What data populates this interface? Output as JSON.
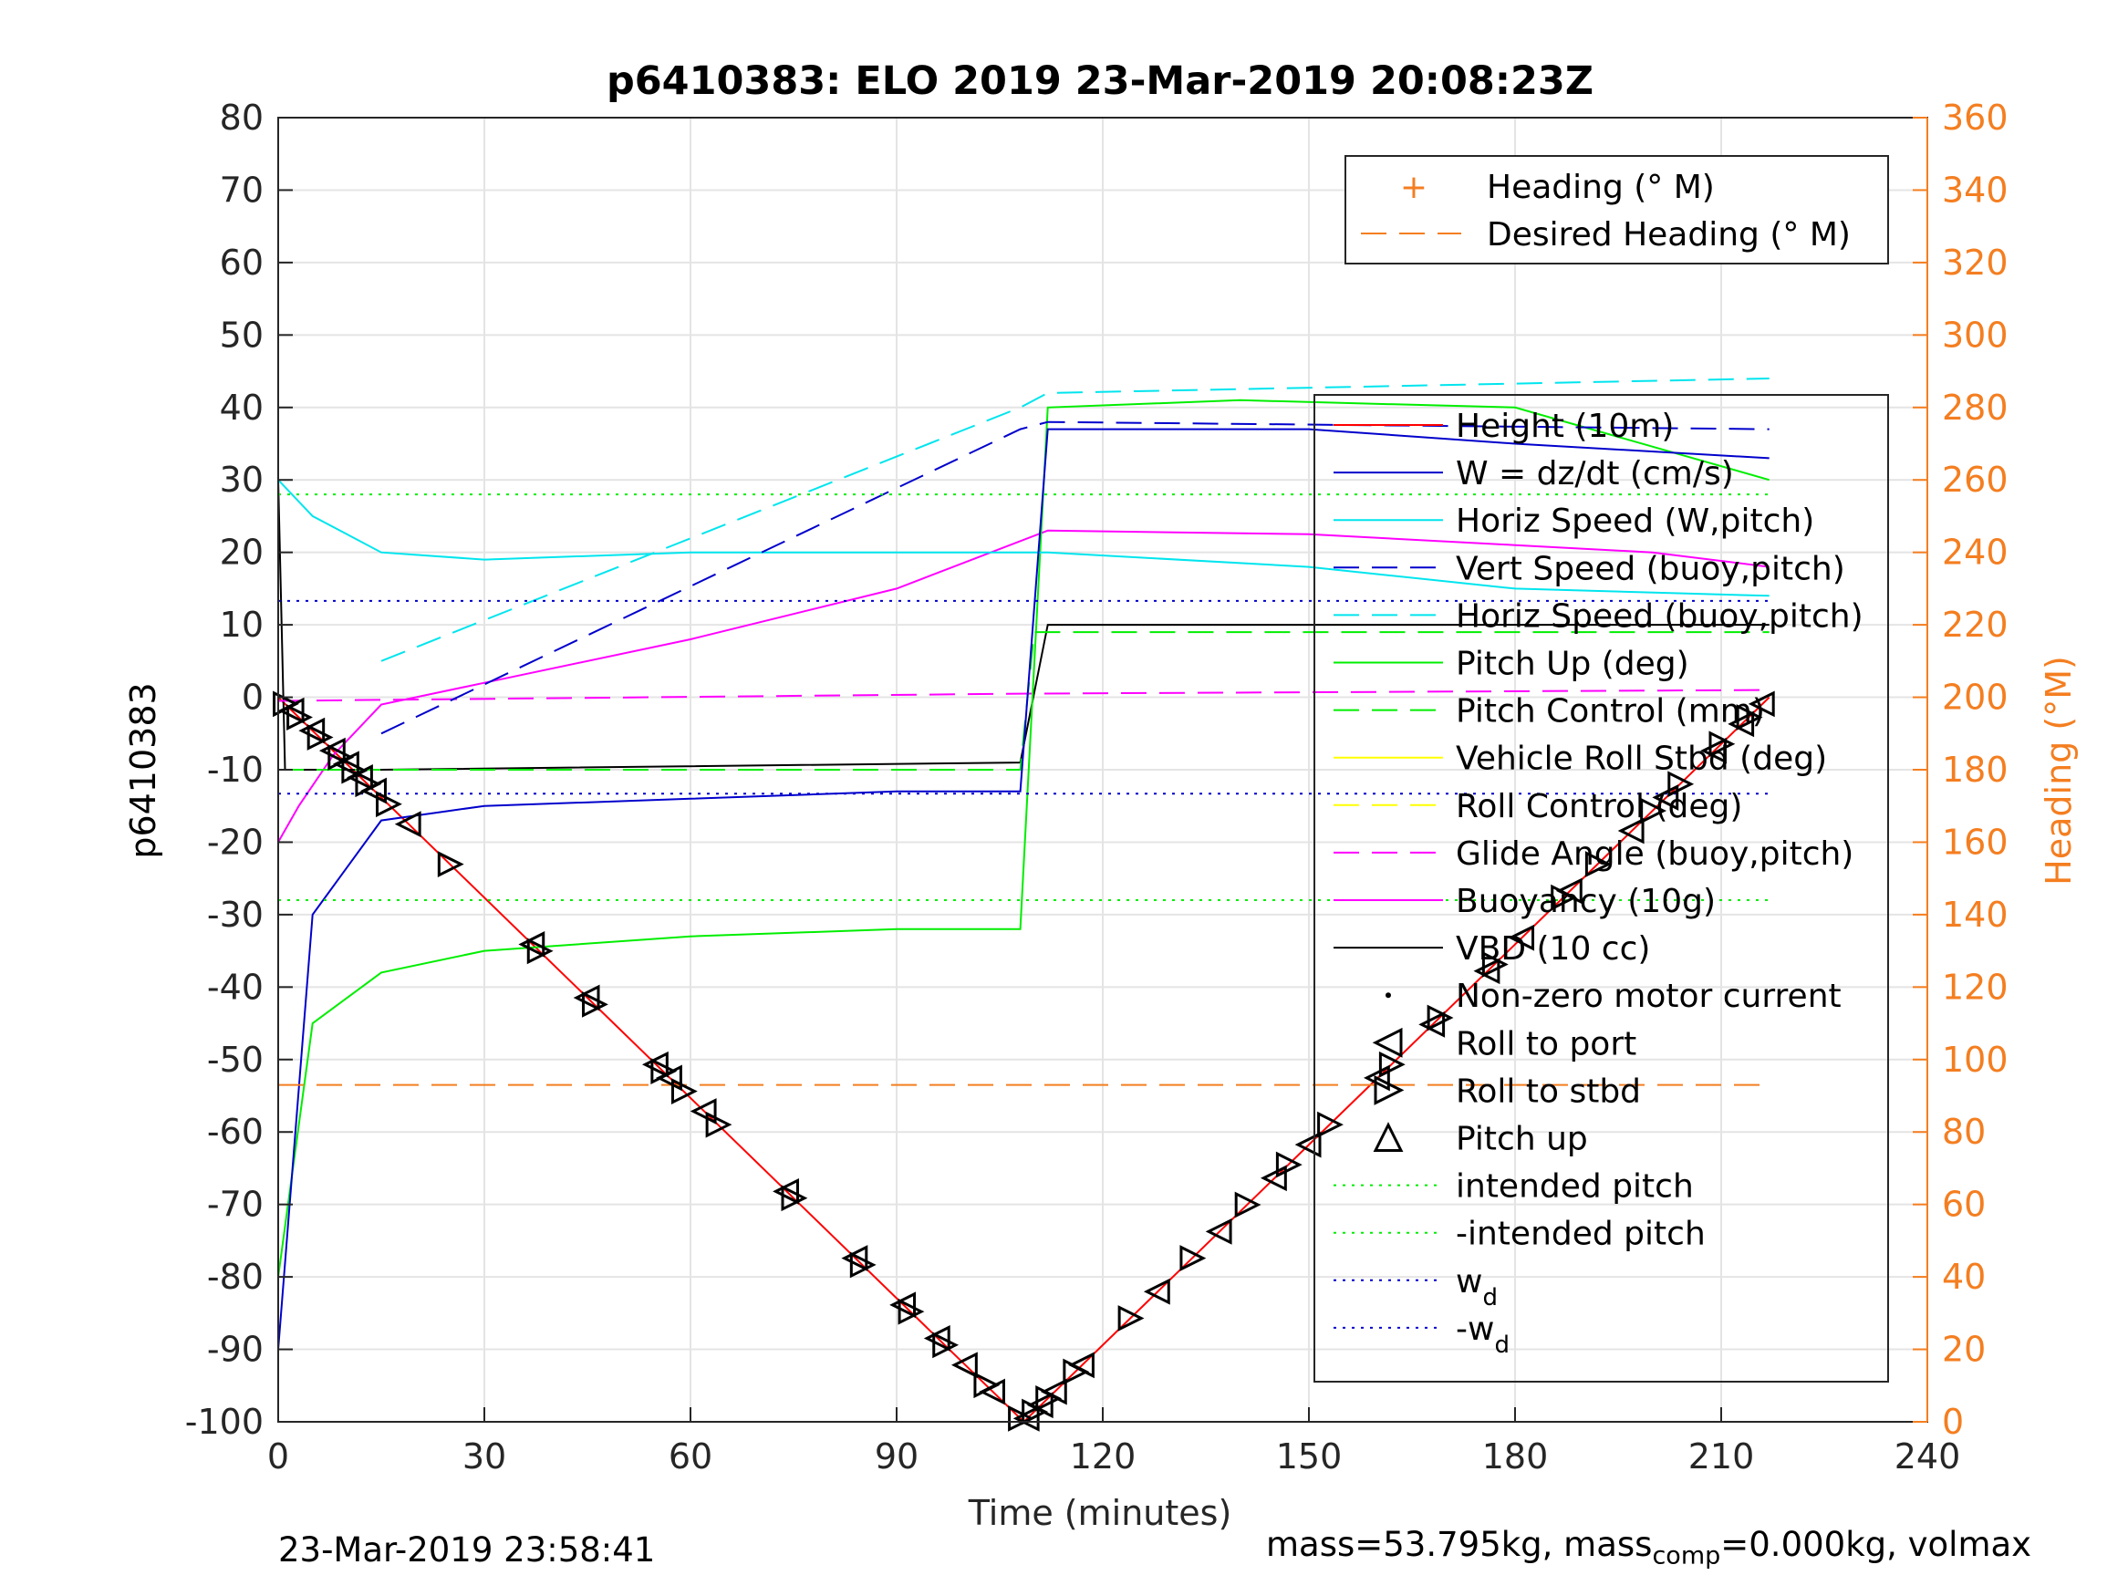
{
  "chart_data": {
    "type": "line",
    "title": "p6410383: ELO 2019 23-Mar-2019 20:08:23Z",
    "xlabel": "Time (minutes)",
    "ylabel_left": "p6410383",
    "ylabel_right": "Heading (°M)",
    "xlim": [
      0,
      240
    ],
    "ylim_left": [
      -100,
      80
    ],
    "ylim_right": [
      0,
      360
    ],
    "xticks": [
      "0",
      "30",
      "60",
      "90",
      "120",
      "150",
      "180",
      "210",
      "240"
    ],
    "yticks_left": [
      "-100",
      "-90",
      "-80",
      "-70",
      "-60",
      "-50",
      "-40",
      "-30",
      "-20",
      "-10",
      "0",
      "10",
      "20",
      "30",
      "40",
      "50",
      "60",
      "70",
      "80"
    ],
    "yticks_right": [
      "0",
      "20",
      "40",
      "60",
      "80",
      "100",
      "120",
      "140",
      "160",
      "180",
      "200",
      "220",
      "240",
      "260",
      "280",
      "300",
      "320",
      "340",
      "360"
    ],
    "grid": true,
    "legend_heading": [
      {
        "label": "Heading (° M)",
        "color": "#f47e20",
        "style": "plus"
      },
      {
        "label": "Desired Heading (° M)",
        "color": "#f47e20",
        "style": "dash"
      }
    ],
    "legend_main": [
      {
        "label": "Height (10m)",
        "color": "#ff0000",
        "style": "solid"
      },
      {
        "label": "W = dz/dt (cm/s)",
        "color": "#0000cc",
        "style": "solid"
      },
      {
        "label": "Horiz Speed (W,pitch)",
        "color": "#00e5ee",
        "style": "solid"
      },
      {
        "label": "Vert Speed (buoy,pitch)",
        "color": "#0000cc",
        "style": "dash"
      },
      {
        "label": "Horiz Speed (buoy,pitch)",
        "color": "#00e5ee",
        "style": "dash"
      },
      {
        "label": "Pitch Up (deg)",
        "color": "#00ee00",
        "style": "solid"
      },
      {
        "label": "Pitch Control (mm)",
        "color": "#00ee00",
        "style": "dash"
      },
      {
        "label": "Vehicle Roll Stbd (deg)",
        "color": "#ffff00",
        "style": "solid"
      },
      {
        "label": "Roll Control (deg)",
        "color": "#ffff00",
        "style": "dash"
      },
      {
        "label": "Glide Angle (buoy,pitch)",
        "color": "#ff00ff",
        "style": "dash"
      },
      {
        "label": "Buoyancy (10g)",
        "color": "#ff00ff",
        "style": "solid"
      },
      {
        "label": "VBD (10 cc)",
        "color": "#000000",
        "style": "solid"
      },
      {
        "label": "Non-zero motor current",
        "color": "#000000",
        "style": "dot"
      },
      {
        "label": "Roll to port",
        "color": "#000000",
        "style": "tri-left"
      },
      {
        "label": "Roll to stbd",
        "color": "#000000",
        "style": "tri-right"
      },
      {
        "label": "Pitch up",
        "color": "#000000",
        "style": "tri-up"
      },
      {
        "label": "intended pitch",
        "color": "#00ee00",
        "style": "dot"
      },
      {
        "label": "-intended pitch",
        "color": "#00ee00",
        "style": "dot"
      },
      {
        "label": "w",
        "sub": "d",
        "color": "#0000cc",
        "style": "dot"
      },
      {
        "label": "-w",
        "sub": "d",
        "color": "#0000cc",
        "style": "dot"
      }
    ],
    "series": [
      {
        "name": "Height (10m)",
        "x": [
          0,
          108.5,
          217
        ],
        "y": [
          0,
          -100,
          0
        ]
      },
      {
        "name": "VBD (10 cc)",
        "x": [
          0,
          1,
          15,
          108,
          112,
          217
        ],
        "y": [
          30,
          -10,
          -10,
          -9,
          10,
          10
        ]
      },
      {
        "name": "Buoyancy (10g)",
        "x": [
          0,
          3,
          8,
          15,
          30,
          60,
          90,
          112,
          150,
          180,
          200,
          217
        ],
        "y": [
          -20,
          -15,
          -8,
          -1,
          2,
          8,
          15,
          23,
          22.5,
          21,
          20,
          18
        ]
      },
      {
        "name": "Glide Angle (buoy,pitch)",
        "x": [
          0,
          108,
          217
        ],
        "y": [
          -0.5,
          0.5,
          1
        ]
      },
      {
        "name": "Pitch Up (deg)",
        "x": [
          0,
          5,
          15,
          30,
          60,
          90,
          108,
          112,
          140,
          180,
          217
        ],
        "y": [
          -80,
          -45,
          -38,
          -35,
          -33,
          -32,
          -32,
          40,
          41,
          40,
          30
        ]
      },
      {
        "name": "Pitch Control (mm)",
        "x": [
          0,
          108,
          110,
          217
        ],
        "y": [
          -10,
          -10,
          9,
          9
        ]
      },
      {
        "name": "Horiz Speed (W,pitch)",
        "x": [
          0,
          5,
          15,
          30,
          60,
          90,
          108,
          112,
          150,
          180,
          217
        ],
        "y": [
          30,
          25,
          20,
          19,
          20,
          20,
          20,
          20,
          18,
          15,
          14
        ]
      },
      {
        "name": "Horiz Speed (buoy,pitch)",
        "x": [
          15,
          108,
          112,
          217
        ],
        "y": [
          5,
          40,
          42,
          44
        ]
      },
      {
        "name": "W = dz/dt (cm/s)",
        "x": [
          0,
          5,
          15,
          30,
          60,
          90,
          108,
          112,
          150,
          180,
          217
        ],
        "y": [
          -90,
          -30,
          -17,
          -15,
          -14,
          -13,
          -13,
          37,
          37,
          35,
          33
        ]
      },
      {
        "name": "Vert Speed (buoy,pitch)",
        "x": [
          15,
          108,
          112,
          217
        ],
        "y": [
          -5,
          37,
          38,
          37
        ]
      },
      {
        "name": "intended pitch",
        "x": [
          0,
          217
        ],
        "y": [
          28,
          28
        ]
      },
      {
        "name": "-intended pitch",
        "x": [
          0,
          217
        ],
        "y": [
          -28,
          -28
        ]
      },
      {
        "name": "w_d",
        "x": [
          0,
          217
        ],
        "y": [
          13.3,
          13.3
        ]
      },
      {
        "name": "-w_d",
        "x": [
          0,
          217
        ],
        "y": [
          -13.3,
          -13.3
        ]
      },
      {
        "name": "Desired Heading (° M)",
        "axis": "right",
        "x": [
          0,
          217
        ],
        "y": [
          93,
          93
        ]
      }
    ],
    "roll_markers_t": [
      1,
      2,
      3,
      5,
      6,
      8,
      9,
      10,
      11,
      12,
      13,
      14,
      16,
      19,
      25,
      37,
      38,
      45,
      46,
      55,
      56,
      57,
      59,
      62,
      64,
      74,
      75,
      84,
      85,
      91,
      92,
      96,
      97,
      100,
      103,
      104,
      108,
      109,
      110,
      111,
      112,
      113,
      116,
      117,
      124,
      128,
      133,
      137,
      141,
      145,
      147,
      150,
      153,
      160,
      162,
      168,
      169,
      176,
      177,
      181,
      187,
      188,
      192,
      197,
      200,
      202,
      204,
      209,
      210,
      213,
      214,
      216
    ]
  },
  "footer": {
    "datetime": "23-Mar-2019 23:58:41",
    "mass_prefix": "mass=53.795kg, mass",
    "mass_sub": "comp",
    "mass_suffix": "=0.000kg, volmax"
  }
}
